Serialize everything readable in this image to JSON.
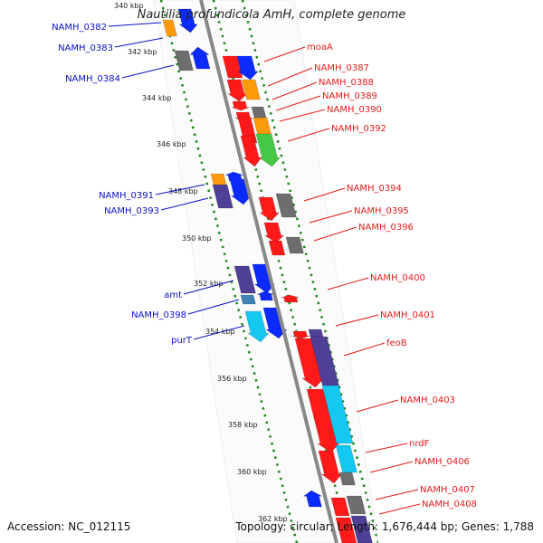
{
  "title": "Nautilia profundicola AmH, complete genome",
  "accession": "Accession: NC_012115",
  "topology": "Topology: circular; Length: 1,676,444 bp; Genes: 1,788",
  "colors": {
    "backbone": "#808080",
    "dots": "#1a8a1a",
    "red": "#ff1a1a",
    "blue": "#0a2aff",
    "orange": "#ff9a0a",
    "gray": "#6e6e6e",
    "indigo": "#4f3f96",
    "cyan": "#14c8f2",
    "green": "#46c846",
    "steel": "#3f84b4",
    "label_blue": "#0a10c8",
    "label_red": "#e61a1a"
  },
  "kbp_ticks": [
    "340 kbp",
    "342 kbp",
    "344 kbp",
    "346 kbp",
    "348 kbp",
    "350 kbp",
    "352 kbp",
    "354 kbp",
    "356 kbp",
    "358 kbp",
    "360 kbp",
    "362 kbp"
  ],
  "left_labels": [
    "NAMH_0382",
    "NAMH_0383",
    "NAMH_0384",
    "NAMH_0391",
    "NAMH_0393",
    "amt",
    "NAMH_0398",
    "purT"
  ],
  "right_labels": [
    "moaA",
    "NAMH_0387",
    "NAMH_0388",
    "NAMH_0389",
    "NAMH_0390",
    "NAMH_0392",
    "NAMH_0394",
    "NAMH_0395",
    "NAMH_0396",
    "NAMH_0400",
    "NAMH_0401",
    "feoB",
    "NAMH_0403",
    "nrdF",
    "NAMH_0406",
    "NAMH_0407",
    "NAMH_0408"
  ]
}
